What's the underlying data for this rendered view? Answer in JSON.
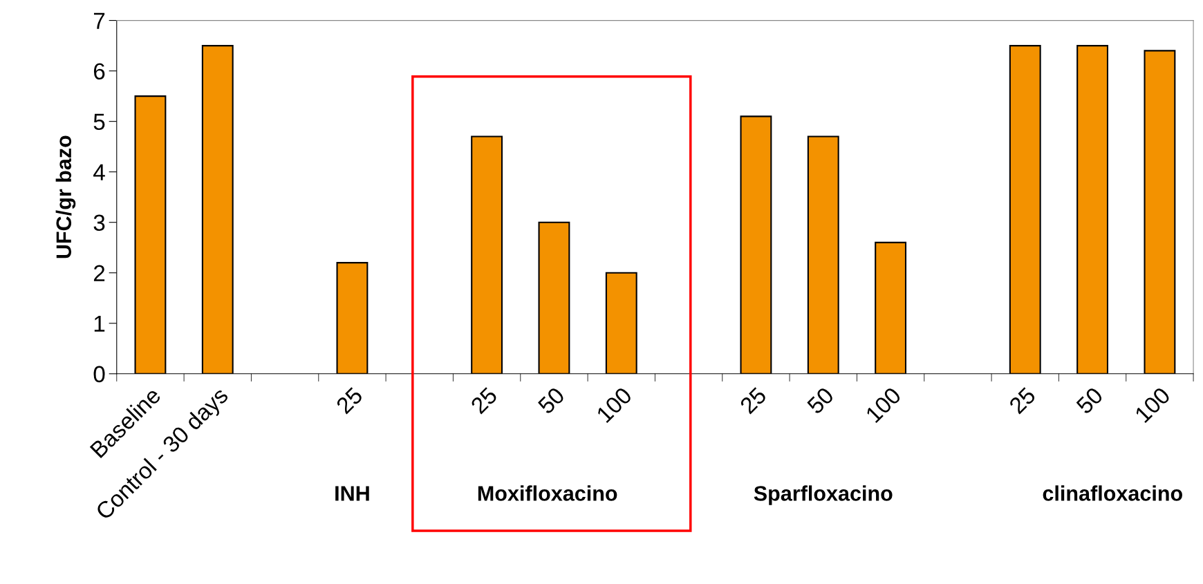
{
  "chart_data": {
    "type": "bar",
    "ylabel": "UFC/gr bazo",
    "categories": [
      "Baseline",
      "Control - 30 days",
      null,
      "25",
      null,
      "25",
      "50",
      "100",
      null,
      "25",
      "50",
      "100",
      null,
      "25",
      "50",
      "100"
    ],
    "values": [
      5.5,
      6.5,
      null,
      2.2,
      null,
      4.7,
      3.0,
      2.0,
      null,
      5.1,
      4.7,
      2.6,
      null,
      6.5,
      6.5,
      6.4
    ],
    "color": "#f39200",
    "ylim": [
      0,
      7
    ],
    "yticks": [
      0,
      1,
      2,
      3,
      4,
      5,
      6,
      7
    ],
    "grid": false,
    "legend": false,
    "annotations": [
      "INH",
      "Moxifloxacino",
      "Sparfloxacino",
      "clinafloxacino"
    ]
  }
}
